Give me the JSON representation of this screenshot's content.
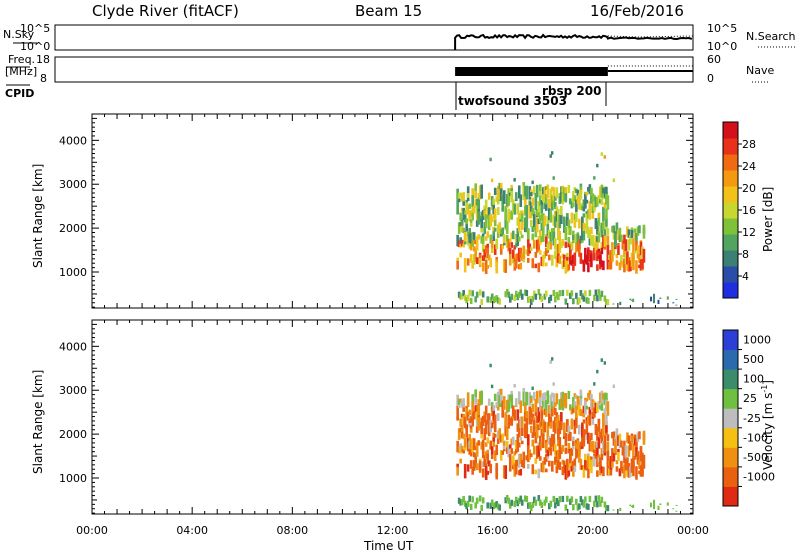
{
  "header": {
    "station": "Clyde River (fitACF)",
    "beam": "Beam 15",
    "date": "16/Feb/2016"
  },
  "top_panels": {
    "nsky_label": "N.Sky",
    "nsky_left_ticks": [
      "10^5",
      "10^0"
    ],
    "nsky_right_ticks": [
      "10^5",
      "10^0"
    ],
    "nsearch_label": "N.Search",
    "freq_label": "Freq.",
    "freq_unit": "[MHz]",
    "freq_ticks": [
      "18",
      "8"
    ],
    "nave_ticks": [
      "60",
      "0"
    ],
    "nave_label": "Nave",
    "cpid_label": "CPID",
    "cpid_1": "twofsound 3503",
    "cpid_2": "rbsp 200"
  },
  "colors": {
    "power_scale": [
      "#1f2fe0",
      "#2a4ea8",
      "#3c7f74",
      "#52a45e",
      "#7fc23a",
      "#c8d630",
      "#f2c21a",
      "#f49a12",
      "#ef6a10",
      "#e8301a",
      "#d4101a"
    ],
    "velocity_scale": [
      "#2b3fd6",
      "#2c6ab0",
      "#3a8c6a",
      "#6fc040",
      "#bdbdbd",
      "#f6c012",
      "#f09010",
      "#ea6010",
      "#e02a14"
    ]
  },
  "chart_data": [
    {
      "type": "heatmap",
      "panel": "power",
      "ylabel": "Slant Range [km]",
      "ylim": [
        180,
        4600
      ],
      "yticks": [
        "1000",
        "2000",
        "3000",
        "4000"
      ],
      "xlim_hours": [
        0,
        24
      ],
      "colorbar_label": "Power [dB]",
      "colorbar_ticks": [
        "4",
        "8",
        "12",
        "16",
        "20",
        "24",
        "28"
      ],
      "colorbar_range": [
        0,
        32
      ],
      "echo_regions": [
        {
          "t_start": 14.5,
          "t_end": 22.0,
          "range_min": 800,
          "range_max": 3100,
          "desc": "main scatter"
        },
        {
          "t_start": 14.5,
          "t_end": 20.5,
          "range_min": 180,
          "range_max": 600,
          "desc": "near-range scatter"
        }
      ]
    },
    {
      "type": "heatmap",
      "panel": "velocity",
      "ylabel": "Slant Range [km]",
      "ylim": [
        180,
        4600
      ],
      "yticks": [
        "1000",
        "2000",
        "3000",
        "4000"
      ],
      "xticks": [
        "00:00",
        "04:00",
        "08:00",
        "12:00",
        "16:00",
        "20:00",
        "00:00"
      ],
      "xlabel": "Time UT",
      "colorbar_label": "Velocity [m s",
      "colorbar_label_sup": "-1",
      "colorbar_label_end": "]",
      "colorbar_ticks": [
        "1000",
        "500",
        "100",
        "25",
        "-25",
        "-100",
        "-500",
        "-1000"
      ]
    }
  ]
}
